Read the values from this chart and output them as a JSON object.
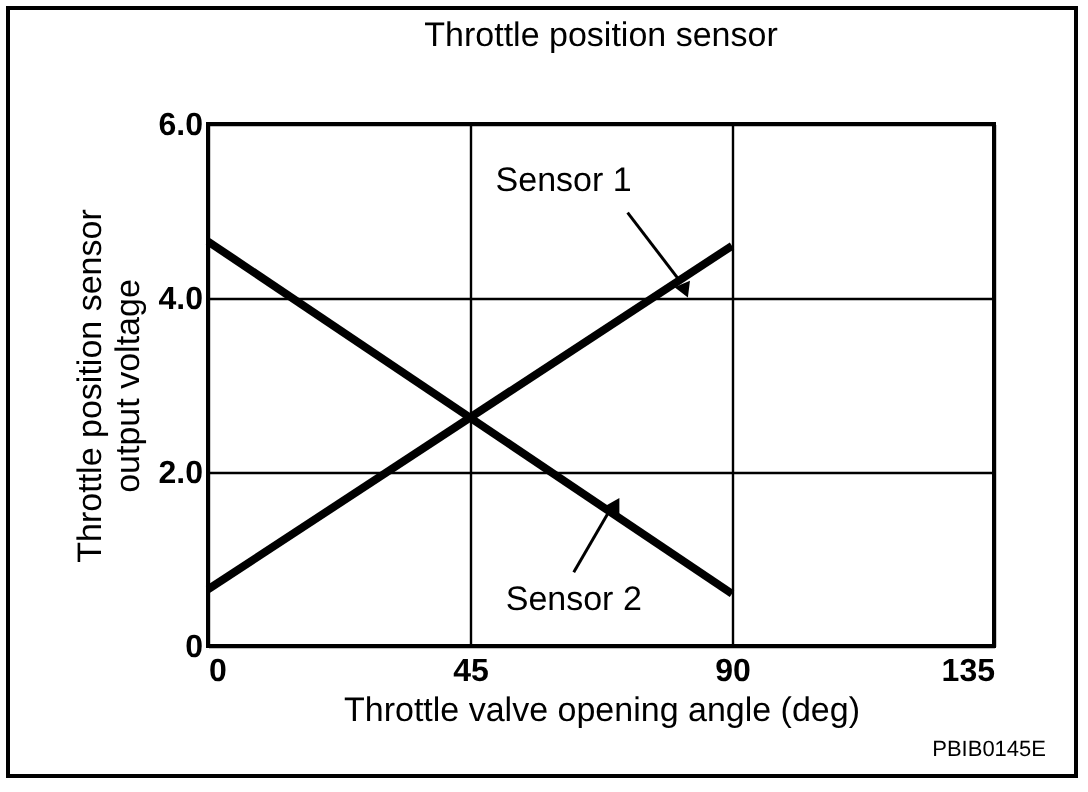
{
  "chart_data": {
    "type": "line",
    "title": "Throttle position sensor",
    "xlabel": "Throttle valve opening angle (deg)",
    "ylabel": "Throttle position sensor output voltage",
    "series": [
      {
        "color": "#000000",
        "values": [
          0.65,
          4.6
        ]
      },
      {
        "color": "#000000",
        "values": [
          4.65,
          0.6
        ]
      }
    ],
    "x": [
      0,
      90
    ],
    "xlim": [
      0,
      135
    ],
    "xticks": [
      0,
      45,
      90,
      135
    ],
    "ylim": [
      0,
      6
    ],
    "yticks": [
      {
        "value": 0,
        "label": "0"
      },
      {
        "value": 2,
        "label": "2.0"
      },
      {
        "value": 4,
        "label": "4.0"
      },
      {
        "value": 6,
        "label": "6.0"
      }
    ],
    "grid": true,
    "line_style": "solid",
    "marker": "none",
    "annotations": [
      {
        "text": "Sensor 1",
        "x": 81,
        "y": 4.2
      },
      {
        "text": "Sensor 2",
        "x": 69,
        "y": 1.56
      },
      "PBIB0145E"
    ]
  }
}
